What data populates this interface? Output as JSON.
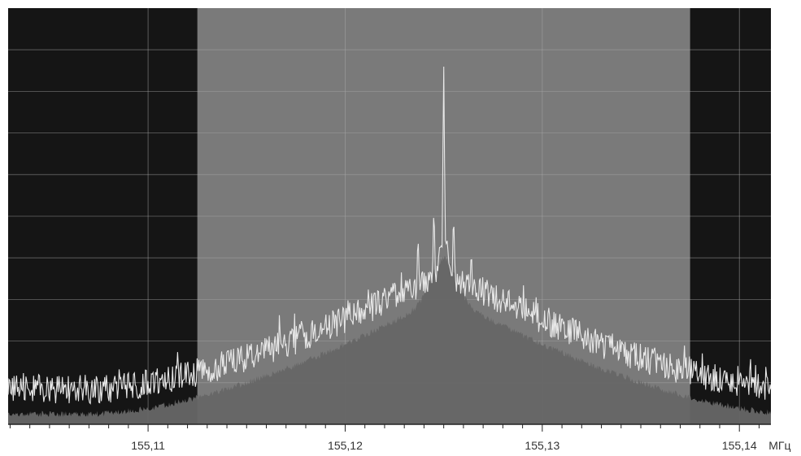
{
  "chart_data": {
    "type": "area",
    "title": "",
    "xlabel": "",
    "ylabel": "",
    "unit": "МГц",
    "xlim": [
      155.1029,
      155.1416
    ],
    "highlight_band": [
      155.1125,
      155.1375
    ],
    "grid": true,
    "x_ticks": [
      {
        "value": 155.11,
        "label": "155,11"
      },
      {
        "value": 155.12,
        "label": "155,12"
      },
      {
        "value": 155.13,
        "label": "155,13"
      },
      {
        "value": 155.14,
        "label": "155,14"
      }
    ],
    "x_tick_unit_label": "МГц",
    "series": [
      {
        "role": "peak-trace",
        "description_values_db_relative": true
      },
      {
        "role": "average-fill"
      }
    ],
    "center_frequency": 155.125,
    "shape": {
      "noise_floor_level": 0.085,
      "skirt_peak_level": 0.37,
      "carrier_peak_level": 0.86,
      "side_peaks": [
        {
          "x": 155.1237,
          "level": 0.44
        },
        {
          "x": 155.1264,
          "level": 0.41
        },
        {
          "x": 155.1245,
          "level": 0.5
        },
        {
          "x": 155.1255,
          "level": 0.49
        }
      ]
    },
    "colors": {
      "outer_background": "#151515",
      "band_background": "#7a7a7a",
      "fill": "#666666",
      "trace": "#e8e8e8",
      "grid": "#a8a8a8"
    }
  }
}
